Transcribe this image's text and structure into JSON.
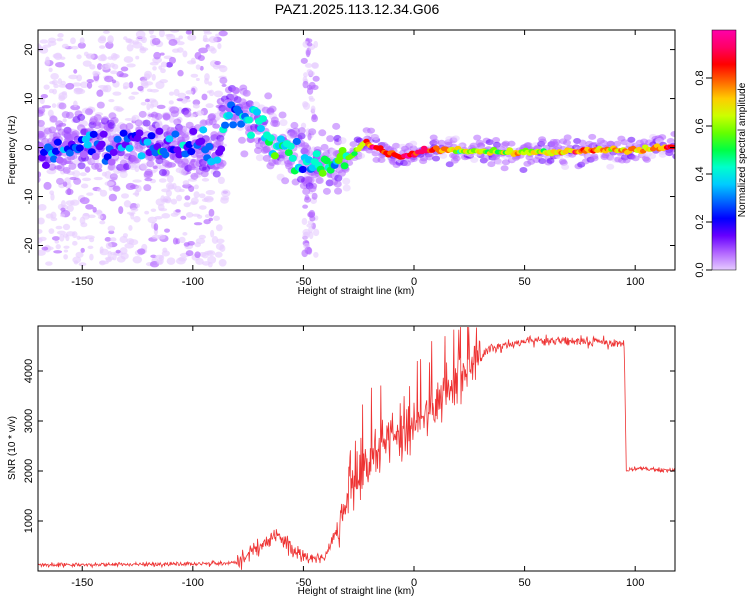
{
  "title": "PAZ1.2025.113.12.34.G06",
  "chart_data": [
    {
      "type": "heatmap",
      "name": "spectrogram",
      "xlabel": "Height of straight line (km)",
      "ylabel": "Frequency (Hz)",
      "xlim": [
        -170,
        118
      ],
      "ylim": [
        -25,
        24
      ],
      "xticks": [
        -150,
        -100,
        -50,
        0,
        50,
        100
      ],
      "yticks": [
        -20,
        -10,
        0,
        10,
        20
      ],
      "colorbar": {
        "label": "Normalized spectral amplitude",
        "range": [
          0,
          1
        ],
        "ticks": [
          0.0,
          0.2,
          0.4,
          0.6,
          0.8
        ],
        "colors": [
          "#e6ccff",
          "#b266ff",
          "#6600ff",
          "#0000ff",
          "#0066ff",
          "#00ccff",
          "#00ffcc",
          "#00ff44",
          "#66ff00",
          "#ccff00",
          "#ffcc00",
          "#ff6600",
          "#ff0000",
          "#ff0066",
          "#ff00aa"
        ]
      },
      "ridge": {
        "height_km": [
          -170,
          -150,
          -130,
          -110,
          -95,
          -88,
          -85,
          -80,
          -70,
          -60,
          -50,
          -44,
          -38,
          -32,
          -27,
          -22,
          -18,
          -12,
          -6,
          0,
          5,
          20,
          50,
          80,
          100,
          118
        ],
        "frequency_hz": [
          0.3,
          0.5,
          0.8,
          0.5,
          0,
          -1,
          8,
          7,
          3.5,
          0.5,
          -3,
          -3.5,
          -4,
          -3,
          -1,
          1.3,
          0.3,
          -1,
          -2,
          -1.5,
          -0.5,
          -0.6,
          -1,
          -0.6,
          -0.4,
          0.2
        ],
        "amplitude": [
          0.25,
          0.25,
          0.25,
          0.25,
          0.25,
          0.3,
          0.35,
          0.38,
          0.4,
          0.45,
          0.4,
          0.42,
          0.45,
          0.5,
          0.55,
          0.75,
          0.85,
          0.8,
          0.85,
          0.82,
          0.9,
          0.6,
          0.6,
          0.75,
          0.65,
          0.8
        ]
      },
      "noise_region_km": [
        -170,
        -85
      ],
      "noise_spread_hz": 24
    },
    {
      "type": "line",
      "name": "snr",
      "xlabel": "Height of straight line (km)",
      "ylabel": "SNR (10 * v/v)",
      "xlim": [
        -170,
        118
      ],
      "ylim": [
        0,
        4900
      ],
      "xticks": [
        -150,
        -100,
        -50,
        0,
        50,
        100
      ],
      "yticks": [
        1000,
        2000,
        3000,
        4000
      ],
      "color": "#ee3333",
      "trend": {
        "height_km": [
          -170,
          -130,
          -100,
          -80,
          -72,
          -62,
          -56,
          -52,
          -45,
          -40,
          -35,
          -30,
          -25,
          -20,
          -15,
          -5,
          5,
          15,
          25,
          35,
          50,
          70,
          95,
          96,
          100,
          118
        ],
        "snr": [
          120,
          130,
          140,
          160,
          400,
          700,
          500,
          300,
          250,
          300,
          800,
          1500,
          1900,
          2200,
          2500,
          2700,
          3000,
          3500,
          4100,
          4450,
          4600,
          4600,
          4550,
          2000,
          2050,
          2000
        ]
      },
      "noise_amplitude": [
        {
          "from_km": -170,
          "to_km": -80,
          "amp": 60
        },
        {
          "from_km": -80,
          "to_km": -50,
          "amp": 250
        },
        {
          "from_km": -50,
          "to_km": -35,
          "amp": 150
        },
        {
          "from_km": -35,
          "to_km": 30,
          "amp": 700
        },
        {
          "from_km": 30,
          "to_km": 96,
          "amp": 150
        },
        {
          "from_km": 96,
          "to_km": 118,
          "amp": 70
        }
      ]
    }
  ]
}
